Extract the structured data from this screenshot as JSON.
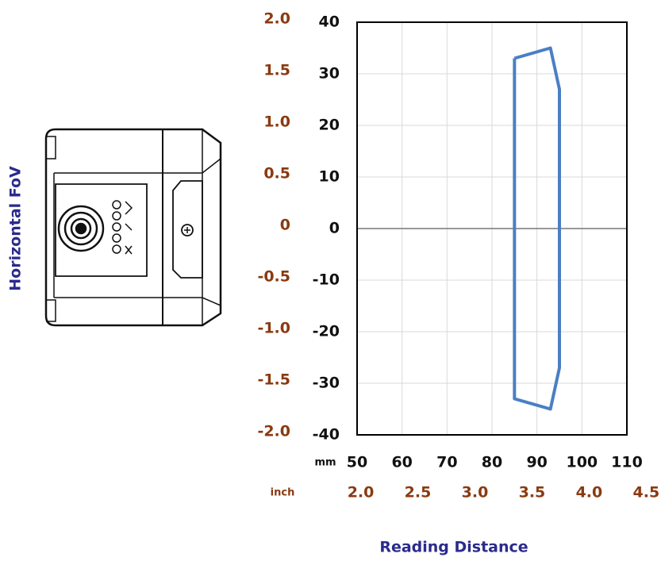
{
  "chart_data": {
    "type": "line",
    "x_label": "Reading Distance",
    "y_label": "Horizontal FoV",
    "x_unit": "mm",
    "x2_unit": "inch",
    "xlim": [
      50,
      110
    ],
    "xticks": [
      50,
      60,
      70,
      80,
      90,
      100,
      110
    ],
    "x2lim": [
      1.9685,
      4.3307
    ],
    "x2ticks": [
      {
        "value": 2,
        "label": "2.0"
      },
      2.5,
      {
        "value": 3,
        "label": "3.0"
      },
      3.5,
      {
        "value": 4,
        "label": "4.0"
      },
      4.5
    ],
    "ylim": [
      -40,
      40
    ],
    "yticks": [
      40,
      30,
      20,
      10,
      0,
      -10,
      -20,
      -30,
      -40
    ],
    "y2lim": [
      -2,
      2
    ],
    "y2ticks": [
      {
        "value": 2,
        "label": "2.0"
      },
      1.5,
      {
        "value": 1,
        "label": "1.0"
      },
      0.5,
      0,
      -0.5,
      {
        "value": -1,
        "label": "-1.0"
      },
      -1.5,
      {
        "value": -2,
        "label": "-2.0"
      }
    ],
    "grid": true,
    "series": [
      {
        "color": "#4a7fc3",
        "x": [
          85,
          93,
          95,
          95,
          93,
          85,
          85
        ],
        "values": [
          33,
          35,
          27,
          -27,
          -35,
          -33,
          33
        ]
      }
    ]
  }
}
